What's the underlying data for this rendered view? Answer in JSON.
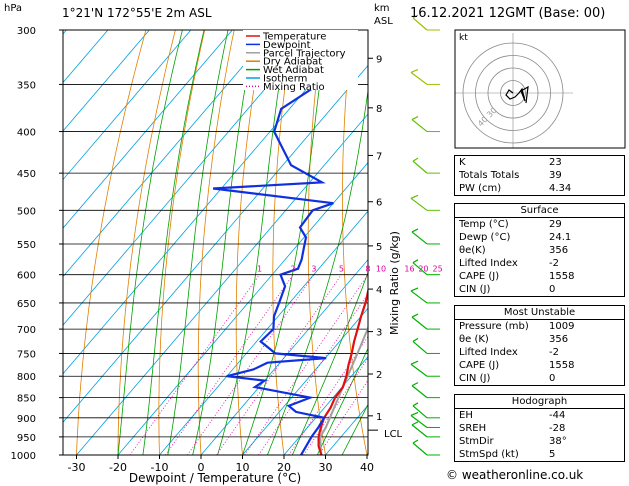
{
  "header": {
    "pressure_unit": "hPa",
    "location": "1°21'N  172°55'E  2m  ASL",
    "height_unit": "km",
    "height_unit2": "ASL",
    "datetime": "16.12.2021  12GMT  (Base: 00)"
  },
  "legend": [
    {
      "label": "Temperature",
      "color": "#e01010",
      "style": "solid"
    },
    {
      "label": "Dewpoint",
      "color": "#1030e0",
      "style": "solid"
    },
    {
      "label": "Parcel Trajectory",
      "color": "#a0a0a0",
      "style": "solid"
    },
    {
      "label": "Dry Adiabat",
      "color": "#e08000",
      "style": "solid"
    },
    {
      "label": "Wet Adiabat",
      "color": "#00a000",
      "style": "solid"
    },
    {
      "label": "Isotherm",
      "color": "#00a0e0",
      "style": "solid"
    },
    {
      "label": "Mixing Ratio",
      "color": "#e000a0",
      "style": "dotted"
    }
  ],
  "xaxis_label": "Dewpoint / Temperature (°C)",
  "mixing_axis_label": "Mixing Ratio (g/kg)",
  "lcl_label": "LCL",
  "credit": "© weatheronline.co.uk",
  "hodo_label": "kt",
  "chart_data": {
    "type": "line",
    "skewt": true,
    "xlim": [
      -35,
      40
    ],
    "pressure_range": [
      1000,
      300
    ],
    "pressure_ticks": [
      300,
      350,
      400,
      450,
      500,
      550,
      600,
      650,
      700,
      750,
      800,
      850,
      900,
      950,
      1000
    ],
    "temperature_ticks": [
      -30,
      -20,
      -10,
      0,
      10,
      20,
      30,
      40
    ],
    "height_ticks": [
      {
        "km": "1",
        "p": 895
      },
      {
        "km": "2",
        "p": 795
      },
      {
        "km": "3",
        "p": 705
      },
      {
        "km": "4",
        "p": 625
      },
      {
        "km": "5",
        "p": 553
      },
      {
        "km": "6",
        "p": 488
      },
      {
        "km": "7",
        "p": 428
      },
      {
        "km": "8",
        "p": 374
      },
      {
        "km": "9",
        "p": 325
      }
    ],
    "mixing_ratio_labels": [
      "1",
      "2",
      "3",
      "5",
      "8",
      "10",
      "16",
      "20",
      "25"
    ],
    "series": [
      {
        "name": "Temperature",
        "points": [
          [
            1000,
            29
          ],
          [
            975,
            26.5
          ],
          [
            950,
            24.6
          ],
          [
            925,
            23.2
          ],
          [
            900,
            22
          ],
          [
            875,
            21.5
          ],
          [
            850,
            20.5
          ],
          [
            825,
            20.2
          ],
          [
            800,
            18.8
          ],
          [
            775,
            17
          ],
          [
            750,
            15.4
          ],
          [
            725,
            13.5
          ],
          [
            700,
            11.8
          ],
          [
            675,
            10
          ],
          [
            650,
            8.3
          ],
          [
            625,
            6.2
          ],
          [
            600,
            4.2
          ],
          [
            575,
            2.1
          ],
          [
            550,
            0
          ],
          [
            525,
            -2.2
          ],
          [
            500,
            -4.7
          ],
          [
            475,
            -7.4
          ],
          [
            450,
            -10.3
          ],
          [
            425,
            -13.2
          ],
          [
            400,
            -16.3
          ],
          [
            375,
            -19.7
          ]
        ]
      },
      {
        "name": "Dewpoint",
        "points": [
          [
            1000,
            24.1
          ],
          [
            975,
            23.5
          ],
          [
            950,
            22.9
          ],
          [
            925,
            22.6
          ],
          [
            900,
            22
          ],
          [
            885,
            14
          ],
          [
            870,
            11
          ],
          [
            850,
            14.5
          ],
          [
            825,
            -1
          ],
          [
            810,
            0
          ],
          [
            800,
            -10
          ],
          [
            785,
            -5
          ],
          [
            770,
            -3
          ],
          [
            760,
            10.2
          ],
          [
            750,
            -3
          ],
          [
            725,
            -9
          ],
          [
            700,
            -8.5
          ],
          [
            675,
            -11
          ],
          [
            650,
            -12.5
          ],
          [
            620,
            -14.5
          ],
          [
            600,
            -18
          ],
          [
            590,
            -15
          ],
          [
            575,
            -16
          ],
          [
            555,
            -18
          ],
          [
            540,
            -19.5
          ],
          [
            525,
            -23
          ],
          [
            500,
            -23.5
          ],
          [
            490,
            -20
          ],
          [
            470,
            -52
          ],
          [
            462,
            -27
          ],
          [
            440,
            -38
          ],
          [
            400,
            -49
          ],
          [
            375,
            -52
          ],
          [
            350,
            -48
          ],
          [
            330,
            -56
          ],
          [
            300,
            -55
          ]
        ]
      },
      {
        "name": "Parcel Trajectory",
        "points": [
          [
            1000,
            29
          ],
          [
            975,
            27
          ],
          [
            950,
            25
          ],
          [
            925,
            24.4
          ],
          [
            900,
            23.4
          ],
          [
            850,
            21.3
          ],
          [
            800,
            19.1
          ],
          [
            750,
            16.8
          ],
          [
            700,
            14.2
          ],
          [
            650,
            11.3
          ],
          [
            600,
            8.2
          ],
          [
            550,
            4.7
          ],
          [
            500,
            0.8
          ],
          [
            450,
            -3.8
          ],
          [
            400,
            -9.4
          ],
          [
            375,
            -12.8
          ]
        ]
      }
    ],
    "hodograph": {
      "rings": [
        10,
        20,
        30,
        40
      ],
      "ring_labels": [
        {
          "ring": 40,
          "label": "40"
        },
        {
          "ring": 30,
          "label": "30"
        }
      ]
    },
    "wind_barbs_pressures": [
      1000,
      950,
      925,
      900,
      850,
      800,
      750,
      700,
      650,
      600,
      550,
      500,
      450,
      400,
      350,
      300
    ]
  },
  "table": {
    "indices": [
      {
        "k": "K",
        "v": "23"
      },
      {
        "k": "Totals Totals",
        "v": "39"
      },
      {
        "k": "PW (cm)",
        "v": "4.34"
      }
    ],
    "surface": {
      "title": "Surface",
      "rows": [
        {
          "k": "Temp (°C)",
          "v": "29"
        },
        {
          "k": "Dewp (°C)",
          "v": "24.1"
        },
        {
          "k": "θe(K)",
          "v": "356"
        },
        {
          "k": "Lifted Index",
          "v": "-2"
        },
        {
          "k": "CAPE (J)",
          "v": "1558"
        },
        {
          "k": "CIN (J)",
          "v": "0"
        }
      ]
    },
    "most_unstable": {
      "title": "Most Unstable",
      "rows": [
        {
          "k": "Pressure (mb)",
          "v": "1009"
        },
        {
          "k": "θe (K)",
          "v": "356"
        },
        {
          "k": "Lifted Index",
          "v": "-2"
        },
        {
          "k": "CAPE (J)",
          "v": "1558"
        },
        {
          "k": "CIN (J)",
          "v": "0"
        }
      ]
    },
    "hodograph": {
      "title": "Hodograph",
      "rows": [
        {
          "k": "EH",
          "v": "-44"
        },
        {
          "k": "SREH",
          "v": "-28"
        },
        {
          "k": "StmDir",
          "v": "38°"
        },
        {
          "k": "StmSpd (kt)",
          "v": "5"
        }
      ]
    }
  }
}
